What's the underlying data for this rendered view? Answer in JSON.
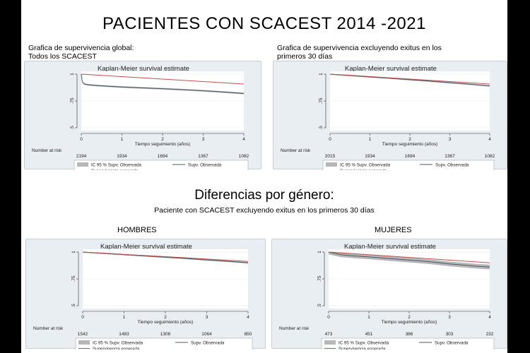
{
  "page": {
    "title": "PACIENTES CON SCACEST 2014 -2021",
    "left_caption_line1": "Grafica de supervivencia global:",
    "left_caption_line2": "Todos los SCACEST",
    "right_caption_line1": "Grafica de supervivencia excluyendo exitus en los",
    "right_caption_line2": "primeros 30 días",
    "section_title": "Diferencias por género:",
    "section_subtitle": "Paciente con SCACEST excluyendo exitus en los primeros 30 días",
    "men_label": "HOMBRES",
    "women_label": "MUJERES"
  },
  "colors": {
    "panel_bg": "#e9eef2",
    "ci_band": "#b7b7b7",
    "observed": "#4a5a66",
    "expected": "#c0504d"
  },
  "chart_data": [
    {
      "type": "line",
      "title": "Kaplan-Meier survival estimate",
      "xlabel": "Tiempo seguimiento (años)",
      "ylabel": "",
      "xlim": [
        0,
        4
      ],
      "ylim": [
        0.5,
        1
      ],
      "x_ticks": [
        0,
        1,
        2,
        3,
        4
      ],
      "y_ticks": [
        {
          "v": 0.5,
          "label": ".5"
        },
        {
          "v": 0.75,
          "label": ".75"
        },
        {
          "v": 1,
          "label": "1"
        }
      ],
      "risk_label": "Number at risk",
      "risk_numbers": [
        "2194",
        "1934",
        "1694",
        "1367",
        "1082"
      ],
      "legend": [
        "IC 95 % Supv. Observada",
        "Supv. Observada",
        "Supervivencia esperada"
      ],
      "series": [
        {
          "name": "Supv. Observada",
          "x": [
            0,
            0.02,
            0.05,
            0.1,
            0.2,
            0.3,
            0.5,
            1,
            1.5,
            2,
            2.5,
            3,
            3.5,
            4
          ],
          "y": [
            1,
            0.94,
            0.915,
            0.905,
            0.9,
            0.896,
            0.891,
            0.88,
            0.872,
            0.864,
            0.855,
            0.845,
            0.833,
            0.82
          ],
          "ci_half_width": 0.008
        },
        {
          "name": "Supervivencia esperada",
          "x": [
            0,
            1,
            2,
            3,
            4
          ],
          "y": [
            1,
            0.977,
            0.954,
            0.931,
            0.908
          ]
        }
      ]
    },
    {
      "type": "line",
      "title": "Kaplan-Meier survival estimate",
      "xlabel": "Tiempo seguimiento (años)",
      "ylabel": "",
      "xlim": [
        0,
        4
      ],
      "ylim": [
        0.5,
        1
      ],
      "x_ticks": [
        0,
        1,
        2,
        3,
        4
      ],
      "y_ticks": [
        {
          "v": 0.5,
          "label": ".5"
        },
        {
          "v": 0.75,
          "label": ".75"
        },
        {
          "v": 1,
          "label": "1"
        }
      ],
      "risk_label": "Number at risk",
      "risk_numbers": [
        "2015",
        "1934",
        "1694",
        "1367",
        "1082"
      ],
      "legend": [
        "IC 95 % Supv. Observada",
        "Supv. Observada",
        "Supervivencia esperada"
      ],
      "series": [
        {
          "name": "Supv. Observada",
          "x": [
            0,
            0.5,
            1,
            1.5,
            2,
            2.5,
            3,
            3.5,
            4
          ],
          "y": [
            1,
            0.987,
            0.974,
            0.962,
            0.948,
            0.935,
            0.92,
            0.906,
            0.89
          ],
          "ci_half_width": 0.007
        },
        {
          "name": "Supervivencia esperada",
          "x": [
            0,
            1,
            2,
            3,
            4
          ],
          "y": [
            1,
            0.977,
            0.954,
            0.931,
            0.908
          ]
        }
      ]
    },
    {
      "type": "line",
      "title": "Kaplan-Meier survival estimate",
      "xlabel": "Tiempo seguimiento (años)",
      "ylabel": "",
      "xlim": [
        0,
        4
      ],
      "ylim": [
        0.5,
        1
      ],
      "x_ticks": [
        0,
        1,
        2,
        3,
        4
      ],
      "y_ticks": [
        {
          "v": 0.5,
          "label": ".5"
        },
        {
          "v": 0.75,
          "label": ".75"
        },
        {
          "v": 1,
          "label": "1"
        }
      ],
      "risk_label": "Number at risk",
      "risk_numbers": [
        "1542",
        "1483",
        "1308",
        "1064",
        "850"
      ],
      "legend": [
        "IC 95 % Supv. Observada",
        "Supv. Observada",
        "Supervivencia esperada"
      ],
      "series": [
        {
          "name": "Supv. Observada",
          "x": [
            0,
            0.5,
            1,
            1.5,
            2,
            2.5,
            3,
            3.5,
            4
          ],
          "y": [
            1,
            0.988,
            0.976,
            0.964,
            0.952,
            0.94,
            0.926,
            0.914,
            0.9
          ],
          "ci_half_width": 0.007
        },
        {
          "name": "Supervivencia esperada",
          "x": [
            0,
            1,
            2,
            3,
            4
          ],
          "y": [
            1,
            0.978,
            0.957,
            0.935,
            0.913
          ]
        }
      ]
    },
    {
      "type": "line",
      "title": "Kaplan-Meier survival estimate",
      "xlabel": "Tiempo seguimiento (años)",
      "ylabel": "",
      "xlim": [
        0,
        4
      ],
      "ylim": [
        0.5,
        1
      ],
      "x_ticks": [
        0,
        1,
        2,
        3,
        4
      ],
      "y_ticks": [
        {
          "v": 0.5,
          "label": ".5"
        },
        {
          "v": 0.75,
          "label": ".75"
        },
        {
          "v": 1,
          "label": "1"
        }
      ],
      "risk_label": "Number at risk",
      "risk_numbers": [
        "473",
        "451",
        "386",
        "303",
        "232"
      ],
      "legend": [
        "IC 95 % Supv. Observada",
        "Supv. Observada",
        "Supervivencia esperada"
      ],
      "series": [
        {
          "name": "Supv. Observada",
          "x": [
            0,
            0.3,
            0.6,
            1,
            1.5,
            2,
            2.5,
            3,
            3.3,
            3.6,
            4
          ],
          "y": [
            1,
            0.975,
            0.965,
            0.955,
            0.94,
            0.925,
            0.91,
            0.89,
            0.88,
            0.87,
            0.86
          ],
          "ci_half_width": 0.022
        },
        {
          "name": "Supervivencia esperada",
          "x": [
            0,
            1,
            2,
            3,
            4
          ],
          "y": [
            1,
            0.975,
            0.95,
            0.925,
            0.9
          ]
        }
      ]
    }
  ]
}
